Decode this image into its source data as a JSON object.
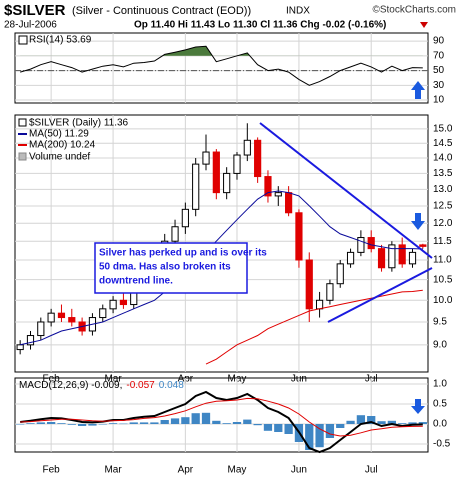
{
  "header": {
    "symbol": "$SILVER",
    "name": "(Silver - Continuous Contract (EOD))",
    "exchange": "INDX",
    "credit": "©StockCharts.com",
    "date": "28-Jul-2006",
    "quote": "Op 11.40 Hi 11.43 Lo 11.30 Cl 11.36 Chg -0.02 (-0.16%)"
  },
  "chart_data": [
    {
      "type": "line",
      "series": [
        {
          "name": "RSI(14) 53.69",
          "color": "#000000",
          "values": [
            48,
            52,
            58,
            62,
            58,
            54,
            48,
            52,
            56,
            58,
            55,
            60,
            61,
            63,
            72,
            75,
            78,
            82,
            83,
            62,
            66,
            70,
            74,
            58,
            50,
            52,
            48,
            38,
            30,
            35,
            42,
            50,
            55,
            60,
            55,
            48,
            56,
            50,
            54,
            53.69
          ]
        }
      ],
      "ylim": [
        6,
        101
      ],
      "yticks": [
        10,
        30,
        50,
        70,
        90
      ],
      "overbought": 70,
      "midline": 50,
      "fill_color": "#4b7a3c",
      "grid": true
    },
    {
      "type": "candlestick",
      "log_scale": true,
      "candle_label": "$SILVER (Daily) 11.36",
      "volume_label": "Volume undef",
      "categories": [
        null,
        null,
        null,
        "Feb",
        null,
        null,
        null,
        null,
        null,
        "Mar",
        null,
        null,
        null,
        null,
        null,
        null,
        "Apr",
        null,
        null,
        null,
        null,
        "May",
        null,
        null,
        null,
        null,
        null,
        "Jun",
        null,
        null,
        null,
        null,
        null,
        null,
        "Jul",
        null,
        null,
        null,
        null,
        null
      ],
      "open": [
        8.9,
        9.0,
        9.2,
        9.5,
        9.7,
        9.6,
        9.5,
        9.3,
        9.6,
        9.8,
        10.0,
        9.9,
        10.3,
        10.4,
        10.6,
        11.5,
        11.9,
        12.4,
        13.8,
        14.2,
        12.9,
        13.5,
        14.1,
        14.6,
        13.4,
        12.8,
        12.9,
        12.3,
        11.0,
        9.8,
        10.0,
        10.4,
        10.9,
        11.2,
        11.6,
        11.3,
        10.8,
        11.4,
        10.9,
        11.4
      ],
      "high": [
        9.1,
        9.3,
        9.6,
        9.8,
        9.9,
        9.8,
        9.6,
        9.7,
        9.9,
        10.1,
        10.2,
        10.4,
        10.5,
        10.8,
        11.7,
        12.1,
        12.6,
        14.0,
        14.8,
        14.3,
        13.7,
        14.2,
        15.2,
        14.7,
        13.6,
        13.1,
        13.1,
        12.4,
        11.2,
        10.2,
        10.5,
        11.0,
        11.3,
        11.8,
        11.8,
        11.4,
        11.5,
        11.6,
        11.3,
        11.43
      ],
      "low": [
        8.8,
        8.9,
        9.1,
        9.4,
        9.5,
        9.4,
        9.2,
        9.2,
        9.5,
        9.7,
        9.8,
        9.8,
        10.2,
        10.3,
        10.5,
        11.3,
        11.7,
        12.2,
        13.6,
        12.7,
        12.7,
        13.3,
        13.9,
        13.2,
        12.6,
        12.5,
        12.2,
        10.8,
        9.5,
        9.6,
        9.9,
        10.3,
        10.8,
        11.1,
        11.2,
        10.7,
        10.7,
        10.8,
        10.8,
        11.3
      ],
      "close": [
        9.0,
        9.2,
        9.5,
        9.7,
        9.6,
        9.5,
        9.3,
        9.6,
        9.8,
        10.0,
        9.9,
        10.3,
        10.4,
        10.6,
        11.5,
        11.9,
        12.4,
        13.8,
        14.2,
        12.9,
        13.5,
        14.1,
        14.6,
        13.4,
        12.8,
        12.9,
        12.3,
        11.0,
        9.8,
        10.0,
        10.4,
        10.9,
        11.2,
        11.6,
        11.3,
        10.8,
        11.4,
        10.9,
        11.2,
        11.36
      ],
      "up_color": "#000000",
      "down_color": "#e00000",
      "series": [
        {
          "name": "MA(50) 11.29",
          "color": "#0a0a9a",
          "values": [
            9.0,
            9.05,
            9.1,
            9.2,
            9.3,
            9.35,
            9.4,
            9.45,
            9.5,
            9.6,
            9.7,
            9.8,
            9.9,
            10.0,
            10.2,
            10.4,
            10.6,
            10.9,
            11.2,
            11.5,
            11.8,
            12.1,
            12.4,
            12.7,
            12.9,
            12.95,
            12.9,
            12.8,
            12.5,
            12.2,
            11.9,
            11.7,
            11.6,
            11.5,
            11.4,
            11.35,
            11.3,
            11.3,
            11.3,
            11.29
          ]
        },
        {
          "name": "MA(200) 10.24",
          "color": "#e00000",
          "values": [
            null,
            null,
            null,
            null,
            null,
            null,
            null,
            null,
            null,
            null,
            null,
            null,
            null,
            null,
            null,
            null,
            null,
            null,
            8.6,
            8.7,
            8.85,
            9.0,
            9.1,
            9.2,
            9.35,
            9.45,
            9.55,
            9.65,
            9.75,
            9.8,
            9.85,
            9.9,
            9.95,
            10.0,
            10.05,
            10.1,
            10.15,
            10.2,
            10.21,
            10.24
          ]
        }
      ],
      "ylim": [
        8.44,
        15.5
      ],
      "yticks": [
        {
          "value": 9,
          "label": "9.0"
        },
        9.5,
        {
          "value": 10,
          "label": "10.0"
        },
        10.5,
        {
          "value": 11,
          "label": "11.0"
        },
        11.5,
        {
          "value": 12,
          "label": "12.0"
        },
        12.5,
        {
          "value": 13,
          "label": "13.0"
        },
        13.5,
        {
          "value": 14,
          "label": "14.0"
        },
        14.5,
        {
          "value": 15,
          "label": "15.0"
        }
      ],
      "annotation": [
        "Silver has perked up and is over its",
        "50 dma. Has also broken its",
        "downtrend line."
      ],
      "grid": true
    },
    {
      "type": "macd",
      "series": [
        {
          "name": "MACD(12,26,9) -0.009,",
          "color": "#000000",
          "values": [
            0.05,
            0.08,
            0.12,
            0.15,
            0.14,
            0.1,
            0.05,
            0.04,
            0.06,
            0.1,
            0.1,
            0.15,
            0.18,
            0.2,
            0.3,
            0.4,
            0.5,
            0.7,
            0.8,
            0.65,
            0.6,
            0.65,
            0.75,
            0.6,
            0.4,
            0.3,
            0.15,
            -0.2,
            -0.6,
            -0.7,
            -0.6,
            -0.4,
            -0.2,
            0.0,
            0.05,
            -0.05,
            0.0,
            -0.05,
            -0.02,
            -0.009
          ]
        },
        {
          "name": "-0.057",
          "color": "#e00000",
          "values": [
            0.05,
            0.06,
            0.08,
            0.1,
            0.12,
            0.12,
            0.1,
            0.08,
            0.07,
            0.08,
            0.09,
            0.11,
            0.14,
            0.16,
            0.2,
            0.26,
            0.33,
            0.43,
            0.52,
            0.57,
            0.58,
            0.6,
            0.64,
            0.63,
            0.57,
            0.5,
            0.4,
            0.25,
            0.05,
            -0.12,
            -0.25,
            -0.3,
            -0.28,
            -0.22,
            -0.15,
            -0.12,
            -0.08,
            -0.07,
            -0.06,
            -0.057
          ]
        },
        {
          "name": "0.048",
          "color": "#3f86c4",
          "bars": true,
          "values": [
            0,
            0.02,
            0.04,
            0.05,
            0.02,
            -0.02,
            -0.05,
            -0.04,
            -0.01,
            0.02,
            0.01,
            0.04,
            0.04,
            0.04,
            0.1,
            0.14,
            0.17,
            0.27,
            0.28,
            0.08,
            0.02,
            0.05,
            0.11,
            -0.03,
            -0.17,
            -0.2,
            -0.25,
            -0.45,
            -0.65,
            -0.58,
            -0.35,
            -0.1,
            0.08,
            0.22,
            0.2,
            0.07,
            0.08,
            0.02,
            0.04,
            0.048
          ]
        }
      ],
      "ylim": [
        -0.7,
        1.15
      ],
      "yticks": [
        -0.5,
        {
          "value": 0,
          "label": "0.0"
        },
        0.5,
        {
          "value": 1,
          "label": "1.0"
        }
      ],
      "grid": true
    }
  ]
}
